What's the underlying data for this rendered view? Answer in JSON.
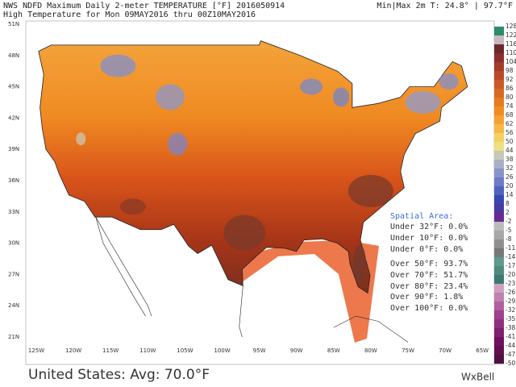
{
  "header": {
    "title": "NWS NDFD Maximum Daily 2-meter TEMPERATURE [°F] 2016050914",
    "minmax": "Min|Max 2m T: 24.8° | 97.7°F",
    "subtitle": "High Temperature for Mon 09MAY2016 thru 00Z10MAY2016"
  },
  "map": {
    "lat_labels": [
      "51N",
      "48N",
      "45N",
      "42N",
      "39N",
      "36N",
      "33N",
      "30N",
      "27N",
      "24N",
      "21N"
    ],
    "lon_labels": [
      "125W",
      "120W",
      "115W",
      "110W",
      "105W",
      "100W",
      "95W",
      "90W",
      "85W",
      "80W",
      "75W",
      "70W",
      "65W"
    ]
  },
  "colorbar": {
    "labels": [
      128,
      122,
      116,
      110,
      104,
      98,
      92,
      86,
      80,
      74,
      68,
      62,
      56,
      50,
      44,
      38,
      32,
      26,
      20,
      14,
      8,
      2,
      -2,
      -5,
      -8,
      -11,
      -14,
      -17,
      -20,
      -23,
      -26,
      -29,
      -32,
      -35,
      -38,
      -41,
      -44,
      -47,
      -50
    ]
  },
  "spatial_area": {
    "title": "Spatial Area:",
    "lines": [
      "Under 32°F: 0.0%",
      "Under 10°F: 0.0%",
      "Under 0°F: 0.0%",
      "Over 50°F: 93.7%",
      "Over 70°F: 51.7%",
      "Over 80°F: 23.4%",
      "Over 90°F: 1.8%",
      "Over 100°F: 0.0%"
    ]
  },
  "footer": {
    "average": "United States: Avg: 70.0°F",
    "brand": "WxBell"
  }
}
